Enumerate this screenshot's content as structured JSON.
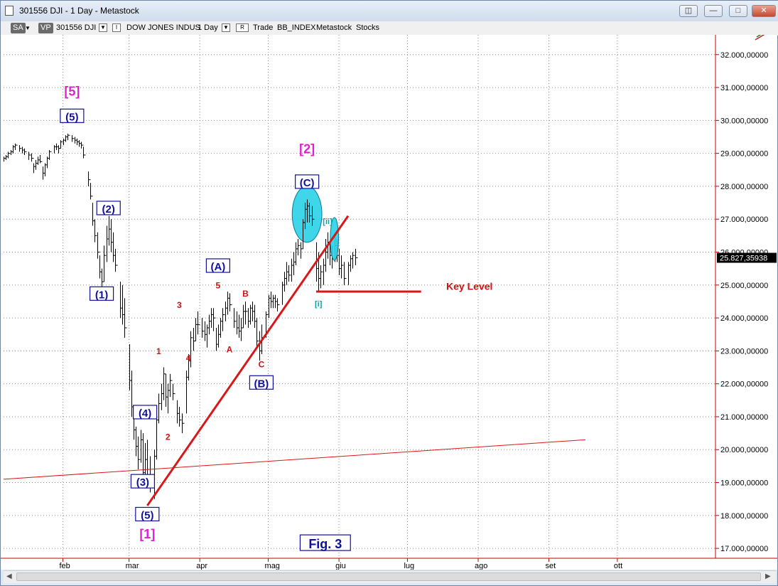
{
  "window": {
    "title": "301556 DJI - 1 Day - Metastock",
    "buttons": [
      "restore-icon",
      "minimize-icon",
      "maximize-icon",
      "close-icon"
    ]
  },
  "toolbar": {
    "sa": "SA",
    "vp": "VP",
    "symbol": "301556 DJI",
    "i_box": "I",
    "name": "DOW JONES INDUS",
    "period": "1 Day",
    "r_box": "R",
    "trade": "Trade",
    "index": "BB_INDEX",
    "metastock": "Metastock",
    "stocks": "Stocks"
  },
  "colors": {
    "axis_red": "#c00000",
    "label_blue": "#1010a0",
    "label_red": "#d01010",
    "magenta": "#e020d0",
    "teal": "#10a0a0",
    "highlight": "#2ad2e8",
    "trendline": "#d81818"
  },
  "chart_data": {
    "type": "bar",
    "x_axis": {
      "labels": [
        "feb",
        "mar",
        "apr",
        "mag",
        "giu",
        "lug",
        "ago",
        "set",
        "ott"
      ],
      "month_start_day": [
        0,
        29,
        60,
        90,
        121,
        151,
        182,
        213,
        243
      ],
      "range": [
        -26,
        286
      ]
    },
    "y_axis": {
      "range": [
        16700,
        32600
      ],
      "ticks": [
        17000,
        18000,
        19000,
        20000,
        21000,
        22000,
        23000,
        24000,
        25000,
        26000,
        27000,
        28000,
        29000,
        30000,
        31000,
        32000
      ],
      "tick_labels": [
        "17.000,00000",
        "18.000,00000",
        "19.000,00000",
        "20.000,00000",
        "21.000,00000",
        "22.000,00000",
        "23.000,00000",
        "24.000,00000",
        "25.000,00000",
        "26.000,00000",
        "27.000,00000",
        "28.000,00000",
        "29.000,00000",
        "30.000,00000",
        "31.000,00000",
        "32.000,00000"
      ]
    },
    "last_price": 25827.35938,
    "last_price_label": "25.827,35938",
    "bars": [
      [
        -26,
        28900,
        28750,
        28850
      ],
      [
        -25,
        28950,
        28800,
        28900
      ],
      [
        -24,
        29050,
        28850,
        29000
      ],
      [
        -23,
        29100,
        28950,
        29050
      ],
      [
        -22,
        29250,
        29000,
        29200
      ],
      [
        -21,
        29300,
        29100,
        29250
      ],
      [
        -19,
        29250,
        29050,
        29150
      ],
      [
        -18,
        29200,
        29000,
        29100
      ],
      [
        -17,
        29150,
        28950,
        29050
      ],
      [
        -15,
        29050,
        28800,
        28950
      ],
      [
        -14,
        29000,
        28750,
        28850
      ],
      [
        -13,
        28700,
        28400,
        28600
      ],
      [
        -12,
        28800,
        28500,
        28700
      ],
      [
        -11,
        28900,
        28650,
        28800
      ],
      [
        -10,
        28950,
        28700,
        28750
      ],
      [
        -9,
        28600,
        28200,
        28400
      ],
      [
        -8,
        28700,
        28300,
        28650
      ],
      [
        -7,
        28900,
        28550,
        28850
      ],
      [
        -6,
        29100,
        28800,
        29050
      ],
      [
        -4,
        29250,
        29000,
        29200
      ],
      [
        -3,
        29300,
        29100,
        29200
      ],
      [
        -2,
        29250,
        29000,
        29150
      ],
      [
        -1,
        29400,
        29150,
        29350
      ],
      [
        0,
        29450,
        29250,
        29400
      ],
      [
        1,
        29550,
        29350,
        29500
      ],
      [
        2,
        29600,
        29400,
        29550
      ],
      [
        4,
        29550,
        29350,
        29450
      ],
      [
        5,
        29500,
        29300,
        29400
      ],
      [
        6,
        29450,
        29250,
        29350
      ],
      [
        7,
        29400,
        29200,
        29300
      ],
      [
        8,
        29350,
        29150,
        29250
      ],
      [
        9,
        29200,
        28850,
        28950
      ],
      [
        11,
        28450,
        28000,
        28200
      ],
      [
        12,
        28100,
        27600,
        27700
      ],
      [
        13,
        27500,
        26800,
        26950
      ],
      [
        14,
        27000,
        26300,
        26500
      ],
      [
        15,
        26600,
        25800,
        26000
      ],
      [
        16,
        25900,
        25200,
        25400
      ],
      [
        17,
        25500,
        24700,
        25100
      ],
      [
        18,
        26200,
        25100,
        25900
      ],
      [
        19,
        26800,
        25700,
        26400
      ],
      [
        20,
        27100,
        26200,
        26700
      ],
      [
        21,
        27000,
        26000,
        26300
      ],
      [
        22,
        26600,
        25700,
        25900
      ],
      [
        23,
        26100,
        25400,
        25600
      ],
      [
        25,
        25100,
        24000,
        24300
      ],
      [
        26,
        25000,
        23800,
        24100
      ],
      [
        27,
        24600,
        23400,
        23700
      ],
      [
        29,
        23200,
        21800,
        22100
      ],
      [
        30,
        22400,
        21000,
        21300
      ],
      [
        31,
        21300,
        20300,
        20600
      ],
      [
        32,
        20700,
        19800,
        20100
      ],
      [
        33,
        20400,
        19400,
        19700
      ],
      [
        34,
        20600,
        19600,
        20300
      ],
      [
        35,
        20500,
        19100,
        19300
      ],
      [
        36,
        20200,
        18900,
        19700
      ],
      [
        37,
        20300,
        19000,
        19400
      ],
      [
        38,
        19800,
        18700,
        19000
      ],
      [
        40,
        20000,
        18500,
        19800
      ],
      [
        41,
        21100,
        19700,
        20900
      ],
      [
        42,
        21700,
        20800,
        21400
      ],
      [
        43,
        22000,
        21200,
        21700
      ],
      [
        44,
        22500,
        21500,
        22300
      ],
      [
        45,
        22300,
        21300,
        21600
      ],
      [
        46,
        22000,
        21100,
        21800
      ],
      [
        47,
        22300,
        21600,
        22100
      ],
      [
        48,
        22000,
        21500,
        21700
      ],
      [
        50,
        21500,
        20800,
        21100
      ],
      [
        51,
        21300,
        20700,
        20900
      ],
      [
        52,
        21100,
        20500,
        20800
      ],
      [
        54,
        22400,
        21100,
        22200
      ],
      [
        55,
        22900,
        22100,
        22700
      ],
      [
        56,
        23600,
        22500,
        23400
      ],
      [
        57,
        23700,
        23000,
        23300
      ],
      [
        58,
        24000,
        23300,
        23800
      ],
      [
        59,
        24200,
        23500,
        23800
      ],
      [
        61,
        24000,
        23400,
        23600
      ],
      [
        62,
        23900,
        23300,
        23500
      ],
      [
        63,
        23800,
        23100,
        23700
      ],
      [
        64,
        24100,
        23500,
        23900
      ],
      [
        65,
        24300,
        23700,
        24100
      ],
      [
        66,
        24300,
        23600,
        24000
      ],
      [
        67,
        23700,
        23000,
        23200
      ],
      [
        68,
        23800,
        23100,
        23500
      ],
      [
        69,
        24000,
        23400,
        23900
      ],
      [
        70,
        24300,
        23600,
        24100
      ],
      [
        71,
        24500,
        23900,
        24300
      ],
      [
        72,
        24800,
        24100,
        24600
      ],
      [
        73,
        24750,
        24200,
        24400
      ],
      [
        75,
        24300,
        23700,
        23900
      ],
      [
        76,
        24200,
        23500,
        23700
      ],
      [
        77,
        24100,
        23400,
        23600
      ],
      [
        78,
        24000,
        23300,
        23700
      ],
      [
        79,
        24400,
        23700,
        24200
      ],
      [
        80,
        24500,
        23800,
        24200
      ],
      [
        81,
        24300,
        23700,
        23900
      ],
      [
        82,
        24400,
        23800,
        24300
      ],
      [
        83,
        24500,
        23900,
        24200
      ],
      [
        84,
        24400,
        23700,
        23900
      ],
      [
        85,
        24000,
        23100,
        23300
      ],
      [
        86,
        23600,
        22700,
        23000
      ],
      [
        87,
        23800,
        22900,
        23400
      ],
      [
        89,
        24200,
        23400,
        24100
      ],
      [
        90,
        24700,
        24000,
        24600
      ],
      [
        91,
        24800,
        24300,
        24500
      ],
      [
        92,
        24700,
        24300,
        24600
      ],
      [
        93,
        24700,
        24300,
        24500
      ],
      [
        94,
        24600,
        24200,
        24400
      ],
      [
        96,
        25100,
        24400,
        25000
      ],
      [
        97,
        25400,
        24800,
        25200
      ],
      [
        98,
        25700,
        25000,
        25400
      ],
      [
        99,
        25600,
        25100,
        25300
      ],
      [
        100,
        25800,
        25100,
        25600
      ],
      [
        101,
        26000,
        25300,
        25700
      ],
      [
        102,
        26300,
        25600,
        26100
      ],
      [
        103,
        26400,
        25900,
        26200
      ],
      [
        104,
        26300,
        25800,
        26100
      ],
      [
        105,
        27000,
        26100,
        26900
      ],
      [
        106,
        27500,
        26700,
        27300
      ],
      [
        107,
        27600,
        26900,
        27400
      ],
      [
        108,
        27500,
        26900,
        27100
      ],
      [
        109,
        27400,
        26800,
        27000
      ],
      [
        111,
        26300,
        25100,
        25500
      ],
      [
        112,
        26000,
        24800,
        25200
      ],
      [
        113,
        25600,
        24900,
        25400
      ],
      [
        114,
        25800,
        25000,
        25600
      ],
      [
        115,
        26400,
        25400,
        26000
      ],
      [
        116,
        26600,
        25800,
        26300
      ],
      [
        117,
        26300,
        25600,
        25900
      ],
      [
        118,
        26200,
        25500,
        25800
      ],
      [
        119,
        26500,
        25700,
        26200
      ],
      [
        120,
        26400,
        25700,
        25900
      ],
      [
        121,
        26100,
        25300,
        25500
      ],
      [
        122,
        25900,
        25200,
        25600
      ],
      [
        123,
        25700,
        25000,
        25200
      ],
      [
        125,
        25700,
        25000,
        25600
      ],
      [
        126,
        25900,
        25400,
        25800
      ],
      [
        127,
        26000,
        25500,
        25900
      ],
      [
        128,
        26100,
        25600,
        25827
      ]
    ],
    "trendlines": [
      {
        "name": "steep-trendline",
        "from": [
          37,
          18300
        ],
        "to": [
          125,
          27100
        ]
      },
      {
        "name": "long-trendline",
        "from": [
          -26,
          19100
        ],
        "to": [
          229,
          20300
        ]
      },
      {
        "name": "key-level-line",
        "from": [
          111,
          24800
        ],
        "to": [
          157,
          24800
        ]
      }
    ],
    "annotations": [
      {
        "text": "[5]",
        "x": 4,
        "y": 30750,
        "color": "magenta",
        "box": false,
        "size": 18
      },
      {
        "text": "(5)",
        "x": 4,
        "y": 30000,
        "color": "blue",
        "box": true,
        "size": 15
      },
      {
        "text": "(2)",
        "x": 20,
        "y": 27200,
        "color": "blue",
        "box": true,
        "size": 15
      },
      {
        "text": "(1)",
        "x": 17,
        "y": 24600,
        "color": "blue",
        "box": true,
        "size": 15
      },
      {
        "text": "(4)",
        "x": 36,
        "y": 21000,
        "color": "blue",
        "box": true,
        "size": 15
      },
      {
        "text": "(3)",
        "x": 35,
        "y": 18900,
        "color": "blue",
        "box": true,
        "size": 15
      },
      {
        "text": "(5)",
        "x": 37,
        "y": 17900,
        "color": "blue",
        "box": true,
        "size": 15
      },
      {
        "text": "[1]",
        "x": 37,
        "y": 17300,
        "color": "magenta",
        "box": false,
        "size": 18
      },
      {
        "text": "1",
        "x": 42,
        "y": 22900,
        "color": "red",
        "box": false,
        "size": 12
      },
      {
        "text": "2",
        "x": 46,
        "y": 20300,
        "color": "red",
        "box": false,
        "size": 12
      },
      {
        "text": "3",
        "x": 51,
        "y": 24300,
        "color": "red",
        "box": false,
        "size": 12
      },
      {
        "text": "4",
        "x": 55,
        "y": 22700,
        "color": "red",
        "box": false,
        "size": 12
      },
      {
        "text": "5",
        "x": 68,
        "y": 24900,
        "color": "red",
        "box": false,
        "size": 12
      },
      {
        "text": "(A)",
        "x": 68,
        "y": 25450,
        "color": "blue",
        "box": true,
        "size": 15
      },
      {
        "text": "A",
        "x": 73,
        "y": 22950,
        "color": "red",
        "box": false,
        "size": 12
      },
      {
        "text": "B",
        "x": 80,
        "y": 24650,
        "color": "red",
        "box": false,
        "size": 12
      },
      {
        "text": "C",
        "x": 87,
        "y": 22500,
        "color": "red",
        "box": false,
        "size": 12
      },
      {
        "text": "(B)",
        "x": 87,
        "y": 21900,
        "color": "blue",
        "box": true,
        "size": 15
      },
      {
        "text": "[2]",
        "x": 107,
        "y": 29000,
        "color": "magenta",
        "box": false,
        "size": 18
      },
      {
        "text": "(C)",
        "x": 107,
        "y": 28000,
        "color": "blue",
        "box": true,
        "size": 15
      },
      {
        "text": "[ii]",
        "x": 116,
        "y": 26850,
        "color": "teal",
        "box": false,
        "size": 11
      },
      {
        "text": "[i]",
        "x": 112,
        "y": 24350,
        "color": "teal",
        "box": false,
        "size": 11
      },
      {
        "text": "Key Level",
        "x": 168,
        "y": 24850,
        "color": "red",
        "box": false,
        "size": 14
      },
      {
        "text": "Fig. 3",
        "x": 115,
        "y": 17000,
        "color": "blue",
        "box": true,
        "size": 18
      }
    ],
    "highlights": [
      {
        "name": "top-highlight-ellipse",
        "cx": 107,
        "cy": 27150,
        "rx": 6.5,
        "ry": 850
      },
      {
        "name": "small-highlight-ellipse",
        "cx": 119,
        "cy": 26400,
        "rx": 1.8,
        "ry": 650
      }
    ]
  }
}
